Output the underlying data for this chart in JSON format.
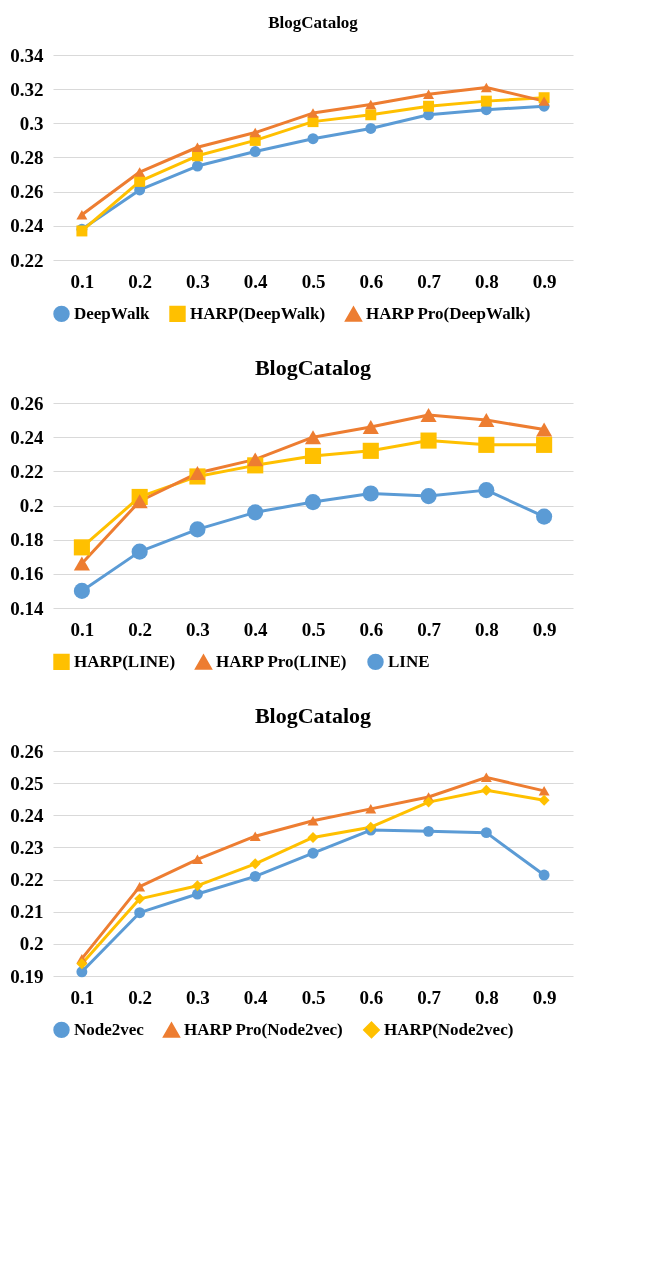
{
  "chart_data": [
    {
      "type": "line",
      "title": "BlogCatalog",
      "categories": [
        "0.1",
        "0.2",
        "0.3",
        "0.4",
        "0.5",
        "0.6",
        "0.7",
        "0.8",
        "0.9"
      ],
      "ylim": [
        0.22,
        0.34
      ],
      "yticks": [
        0.22,
        0.24,
        0.26,
        0.28,
        0.3,
        0.32,
        0.34
      ],
      "grid": "y",
      "legend": "bottom",
      "series": [
        {
          "name": "DeepWalk",
          "color": "#5b9bd5",
          "marker": "circle",
          "values": [
            0.238,
            0.261,
            0.275,
            0.2835,
            0.291,
            0.297,
            0.305,
            0.308,
            0.31
          ]
        },
        {
          "name": "HARP(DeepWalk)",
          "color": "#ffc000",
          "marker": "square",
          "values": [
            0.237,
            0.266,
            0.281,
            0.29,
            0.301,
            0.305,
            0.31,
            0.313,
            0.315
          ]
        },
        {
          "name": "HARP Pro(DeepWalk)",
          "color": "#ed7d31",
          "marker": "triangle",
          "values": [
            0.2465,
            0.2715,
            0.286,
            0.2946,
            0.306,
            0.311,
            0.317,
            0.321,
            0.313
          ]
        }
      ]
    },
    {
      "type": "line",
      "title": "BlogCatalog",
      "categories": [
        "0.1",
        "0.2",
        "0.3",
        "0.4",
        "0.5",
        "0.6",
        "0.7",
        "0.8",
        "0.9"
      ],
      "ylim": [
        0.14,
        0.26
      ],
      "yticks": [
        0.14,
        0.16,
        0.18,
        0.2,
        0.22,
        0.24,
        0.26
      ],
      "grid": "y",
      "legend": "bottom",
      "series": [
        {
          "name": "HARP(LINE)",
          "color": "#ffc000",
          "marker": "square",
          "values": [
            0.1755,
            0.205,
            0.217,
            0.2235,
            0.229,
            0.232,
            0.238,
            0.2355,
            0.2355
          ]
        },
        {
          "name": "HARP Pro(LINE)",
          "color": "#ed7d31",
          "marker": "triangle",
          "values": [
            0.166,
            0.2025,
            0.219,
            0.227,
            0.24,
            0.246,
            0.253,
            0.25,
            0.2445
          ]
        },
        {
          "name": "LINE",
          "color": "#5b9bd5",
          "marker": "circle",
          "values": [
            0.15,
            0.173,
            0.186,
            0.196,
            0.202,
            0.207,
            0.2055,
            0.209,
            0.1935
          ]
        }
      ]
    },
    {
      "type": "line",
      "title": "BlogCatalog",
      "categories": [
        "0.1",
        "0.2",
        "0.3",
        "0.4",
        "0.5",
        "0.6",
        "0.7",
        "0.8",
        "0.9"
      ],
      "ylim": [
        0.19,
        0.26
      ],
      "yticks": [
        0.19,
        0.2,
        0.21,
        0.22,
        0.23,
        0.24,
        0.25,
        0.26
      ],
      "grid": "y",
      "legend": "bottom",
      "series": [
        {
          "name": "Node2vec",
          "color": "#5b9bd5",
          "marker": "circle",
          "values": [
            0.1913,
            0.2097,
            0.2155,
            0.221,
            0.2282,
            0.2354,
            0.235,
            0.2346,
            0.2214
          ]
        },
        {
          "name": "HARP Pro(Node2vec)",
          "color": "#ed7d31",
          "marker": "triangle",
          "values": [
            0.1954,
            0.2178,
            0.2263,
            0.2335,
            0.2383,
            0.242,
            0.2457,
            0.2518,
            0.2476
          ]
        },
        {
          "name": "HARP(Node2vec)",
          "color": "#ffc000",
          "marker": "diamond",
          "values": [
            0.1938,
            0.214,
            0.2181,
            0.2249,
            0.2331,
            0.2363,
            0.2441,
            0.2478,
            0.2447
          ]
        }
      ]
    }
  ]
}
